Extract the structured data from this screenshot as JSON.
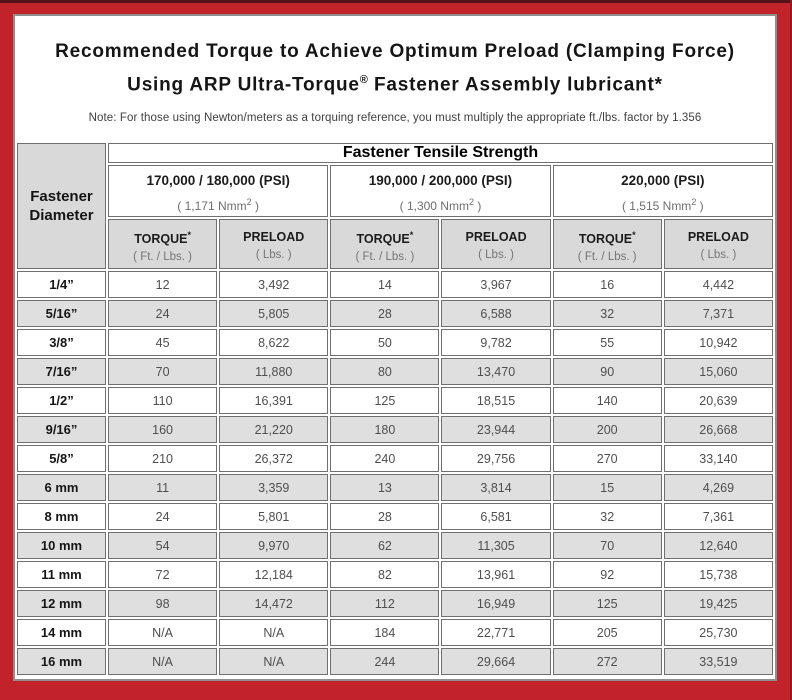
{
  "colors": {
    "frame_red": "#c2232b",
    "frame_dark_edge": "#54121a",
    "panel_border": "#8f8f8f",
    "cell_border": "#707070",
    "row_gray": "#dfdfdf",
    "header_gray": "#d9d9d9"
  },
  "header": {
    "title_line1": "Recommended Torque to Achieve Optimum Preload (Clamping Force)",
    "title_line2_pre": "Using ARP Ultra-Torque",
    "title_line2_sup": "®",
    "title_line2_post": " Fastener Assembly lubricant*",
    "note": "Note: For those using Newton/meters as a torquing reference, you must multiply the appropriate ft./lbs. factor by 1.356"
  },
  "table": {
    "corner_label_line1": "Fastener",
    "corner_label_line2": "Diameter",
    "group_header": "Fastener Tensile Strength",
    "strength_columns": [
      {
        "psi": "170,000 / 180,000 (PSI)",
        "nmm_pre": "( 1,171 Nmm",
        "nmm_sup": "2",
        "nmm_post": " )"
      },
      {
        "psi": "190,000 / 200,000 (PSI)",
        "nmm_pre": "( 1,300 Nmm",
        "nmm_sup": "2",
        "nmm_post": " )"
      },
      {
        "psi": "220,000 (PSI)",
        "nmm_pre": "( 1,515 Nmm",
        "nmm_sup": "2",
        "nmm_post": " )"
      }
    ],
    "sub_headers": {
      "torque_label": "TORQUE",
      "torque_sup": "*",
      "torque_unit": "( Ft. / Lbs. )",
      "preload_label": "PRELOAD",
      "preload_unit": "( Lbs. )"
    },
    "rows": [
      {
        "diameter": "1/4”",
        "values": [
          "12",
          "3,492",
          "14",
          "3,967",
          "16",
          "4,442"
        ]
      },
      {
        "diameter": "5/16”",
        "values": [
          "24",
          "5,805",
          "28",
          "6,588",
          "32",
          "7,371"
        ]
      },
      {
        "diameter": "3/8”",
        "values": [
          "45",
          "8,622",
          "50",
          "9,782",
          "55",
          "10,942"
        ]
      },
      {
        "diameter": "7/16”",
        "values": [
          "70",
          "11,880",
          "80",
          "13,470",
          "90",
          "15,060"
        ]
      },
      {
        "diameter": "1/2”",
        "values": [
          "110",
          "16,391",
          "125",
          "18,515",
          "140",
          "20,639"
        ]
      },
      {
        "diameter": "9/16”",
        "values": [
          "160",
          "21,220",
          "180",
          "23,944",
          "200",
          "26,668"
        ]
      },
      {
        "diameter": "5/8”",
        "values": [
          "210",
          "26,372",
          "240",
          "29,756",
          "270",
          "33,140"
        ]
      },
      {
        "diameter": "6 mm",
        "values": [
          "11",
          "3,359",
          "13",
          "3,814",
          "15",
          "4,269"
        ]
      },
      {
        "diameter": "8 mm",
        "values": [
          "24",
          "5,801",
          "28",
          "6,581",
          "32",
          "7,361"
        ]
      },
      {
        "diameter": "10 mm",
        "values": [
          "54",
          "9,970",
          "62",
          "11,305",
          "70",
          "12,640"
        ]
      },
      {
        "diameter": "11 mm",
        "values": [
          "72",
          "12,184",
          "82",
          "13,961",
          "92",
          "15,738"
        ]
      },
      {
        "diameter": "12 mm",
        "values": [
          "98",
          "14,472",
          "112",
          "16,949",
          "125",
          "19,425"
        ]
      },
      {
        "diameter": "14 mm",
        "values": [
          "N/A",
          "N/A",
          "184",
          "22,771",
          "205",
          "25,730"
        ]
      },
      {
        "diameter": "16 mm",
        "values": [
          "N/A",
          "N/A",
          "244",
          "29,664",
          "272",
          "33,519"
        ]
      }
    ]
  }
}
